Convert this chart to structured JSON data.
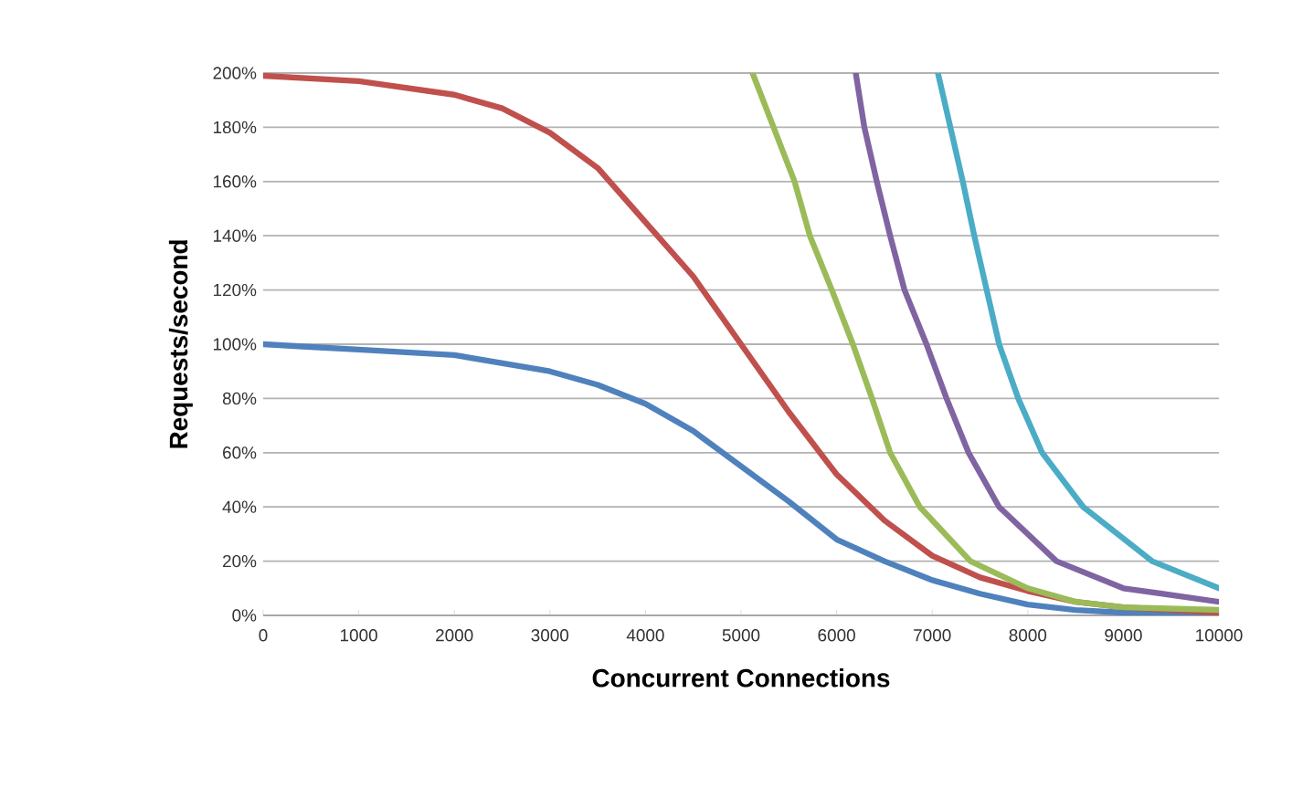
{
  "chart_data": {
    "type": "line",
    "xlabel": "Concurrent Connections",
    "ylabel": "Requests/second",
    "xlim": [
      0,
      10000
    ],
    "ylim": [
      0,
      200
    ],
    "xticks": [
      0,
      1000,
      2000,
      3000,
      4000,
      5000,
      6000,
      7000,
      8000,
      9000,
      10000
    ],
    "yticks": [
      {
        "value": 0,
        "label": "0%"
      },
      {
        "value": 20,
        "label": "20%"
      },
      {
        "value": 40,
        "label": "40%"
      },
      {
        "value": 60,
        "label": "60%"
      },
      {
        "value": 80,
        "label": "80%"
      },
      {
        "value": 100,
        "label": "100%"
      },
      {
        "value": 120,
        "label": "120%"
      },
      {
        "value": 140,
        "label": "140%"
      },
      {
        "value": 160,
        "label": "160%"
      },
      {
        "value": 180,
        "label": "180%"
      },
      {
        "value": 200,
        "label": "200%"
      }
    ],
    "grid": "y",
    "marker": "none",
    "line_style": "solid",
    "series": [
      {
        "color": "#4f81bd",
        "x": [
          0,
          500,
          1000,
          2000,
          3000,
          3500,
          4000,
          4500,
          5000,
          5500,
          6000,
          6500,
          7000,
          7500,
          8000,
          8500,
          9000,
          10000
        ],
        "values": [
          100,
          99,
          98,
          96,
          90,
          85,
          78,
          68,
          55,
          42,
          28,
          20,
          13,
          8,
          4,
          2,
          1,
          0.5
        ]
      },
      {
        "color": "#c0504d",
        "x": [
          0,
          1000,
          2000,
          2500,
          3000,
          3500,
          4000,
          4500,
          5000,
          5500,
          6000,
          6500,
          7000,
          7500,
          8000,
          8500,
          9000,
          10000
        ],
        "values": [
          199,
          197,
          192,
          187,
          178,
          165,
          145,
          125,
          100,
          75,
          52,
          35,
          22,
          14,
          9,
          5,
          3,
          1
        ]
      },
      {
        "color": "#9bbb59",
        "x": [
          5120,
          5340,
          5560,
          5720,
          5950,
          6170,
          6370,
          6560,
          6870,
          7400,
          8000,
          8500,
          9000,
          10000
        ],
        "values": [
          200,
          180,
          160,
          140,
          120,
          100,
          80,
          60,
          40,
          20,
          10,
          5,
          3,
          2
        ]
      },
      {
        "color": "#8064a2",
        "x": [
          6200,
          6290,
          6420,
          6560,
          6710,
          6940,
          7150,
          7380,
          7700,
          8300,
          9000,
          10000
        ],
        "values": [
          200,
          180,
          160,
          140,
          120,
          100,
          80,
          60,
          40,
          20,
          10,
          5
        ]
      },
      {
        "color": "#4bacc6",
        "x": [
          7060,
          7190,
          7320,
          7440,
          7570,
          7700,
          7900,
          8150,
          8580,
          9300,
          10000
        ],
        "values": [
          200,
          180,
          160,
          140,
          120,
          100,
          80,
          60,
          40,
          20,
          10
        ]
      }
    ]
  }
}
